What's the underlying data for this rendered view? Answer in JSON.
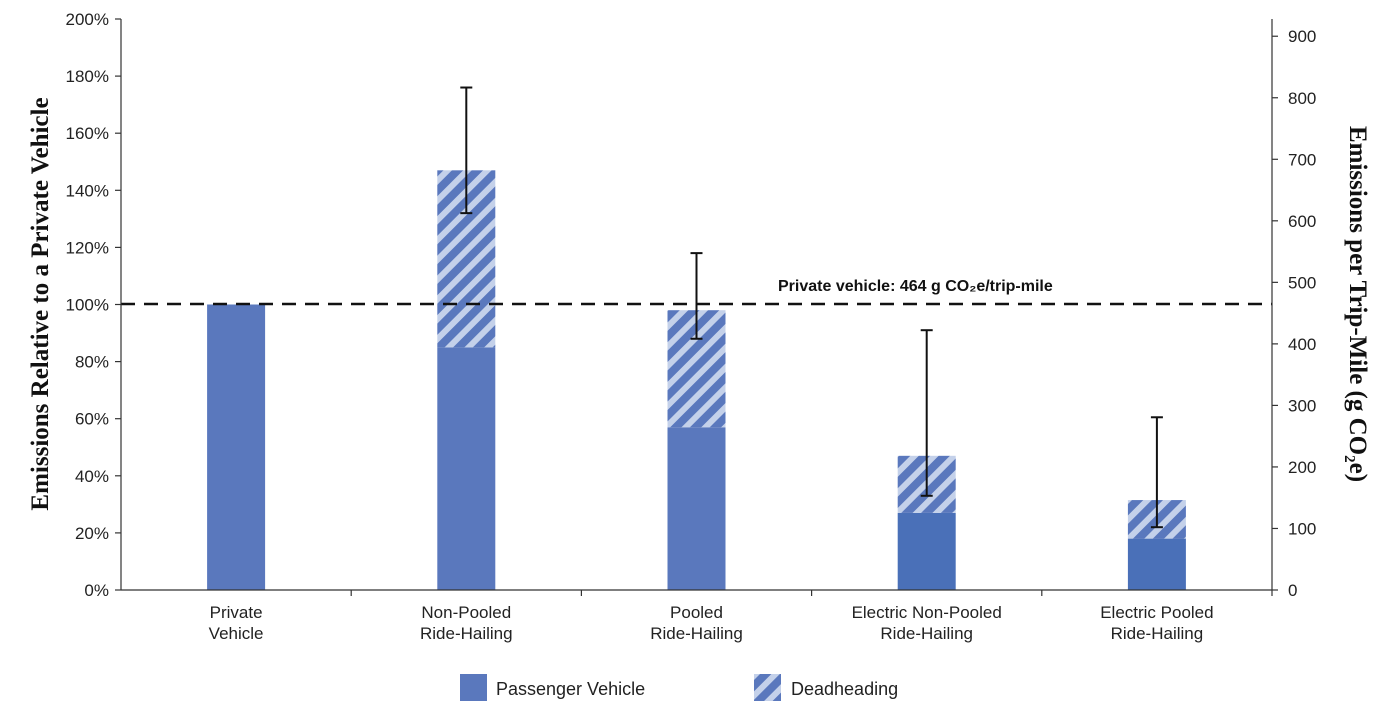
{
  "chart_data": {
    "type": "bar",
    "stacked": true,
    "categories": [
      [
        "Private",
        "Vehicle"
      ],
      [
        "Non-Pooled",
        "Ride-Hailing"
      ],
      [
        "Pooled",
        "Ride-Hailing"
      ],
      [
        "Electric Non-Pooled",
        "Ride-Hailing"
      ],
      [
        "Electric Pooled",
        "Ride-Hailing"
      ]
    ],
    "series": [
      {
        "name": "Passenger Vehicle",
        "values": [
          100,
          85,
          57,
          27,
          18
        ]
      },
      {
        "name": "Deadheading",
        "values": [
          0,
          62,
          41,
          20,
          13.5
        ]
      }
    ],
    "error_bars": {
      "low": [
        null,
        132,
        88,
        33,
        22
      ],
      "high": [
        null,
        176,
        118,
        91,
        60.5
      ]
    },
    "reference_line": {
      "y": 100,
      "label": "Private vehicle: 464 g CO₂e/trip-mile"
    },
    "ylabel": "Emissions Relative to a Private Vehicle",
    "y2label": "Emissions per Trip-Mile (g CO₂e)",
    "ylim": [
      0,
      200
    ],
    "y2lim": [
      0,
      928
    ],
    "yticks": [
      "0%",
      "20%",
      "40%",
      "60%",
      "80%",
      "100%",
      "120%",
      "140%",
      "160%",
      "180%",
      "200%"
    ],
    "y2ticks": [
      "0",
      "100",
      "200",
      "300",
      "400",
      "500",
      "600",
      "700",
      "800",
      "900"
    ],
    "legend": "bottom-center",
    "grid": false,
    "colors": {
      "passenger": "#5a78bd",
      "passenger_electric": "#4a70b8",
      "deadhead_stripe": "#c4d1ea",
      "axis": "#333333"
    }
  }
}
